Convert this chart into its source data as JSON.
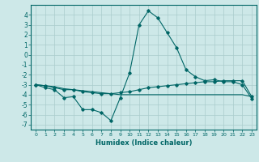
{
  "x": [
    0,
    1,
    2,
    3,
    4,
    5,
    6,
    7,
    8,
    9,
    10,
    11,
    12,
    13,
    14,
    15,
    16,
    17,
    18,
    19,
    20,
    21,
    22,
    23
  ],
  "line1": [
    -3.0,
    -3.3,
    -3.5,
    -4.3,
    -4.2,
    -5.5,
    -5.5,
    -5.8,
    -6.6,
    -4.3,
    -1.8,
    3.0,
    4.4,
    3.7,
    2.2,
    0.7,
    -1.5,
    -2.2,
    -2.6,
    -2.5,
    -2.7,
    -2.7,
    -3.0,
    -4.4
  ],
  "line2": [
    -3.0,
    -3.1,
    -3.3,
    -3.5,
    -3.5,
    -3.7,
    -3.8,
    -3.9,
    -3.9,
    -3.8,
    -3.7,
    -3.5,
    -3.3,
    -3.2,
    -3.1,
    -3.0,
    -2.9,
    -2.8,
    -2.7,
    -2.7,
    -2.6,
    -2.6,
    -2.6,
    -4.2
  ],
  "line3": [
    -3.0,
    -3.1,
    -3.2,
    -3.4,
    -3.5,
    -3.6,
    -3.7,
    -3.8,
    -3.9,
    -4.0,
    -4.0,
    -4.0,
    -4.0,
    -4.0,
    -4.0,
    -4.0,
    -4.0,
    -4.0,
    -4.0,
    -4.0,
    -4.0,
    -4.0,
    -4.0,
    -4.2
  ],
  "bg_color": "#cde8e8",
  "line_color": "#006666",
  "grid_color": "#aacccc",
  "xlabel": "Humidex (Indice chaleur)",
  "ylim": [
    -7.5,
    5.0
  ],
  "xlim": [
    -0.5,
    23.5
  ],
  "yticks": [
    -7,
    -6,
    -5,
    -4,
    -3,
    -2,
    -1,
    0,
    1,
    2,
    3,
    4
  ],
  "xticks": [
    0,
    1,
    2,
    3,
    4,
    5,
    6,
    7,
    8,
    9,
    10,
    11,
    12,
    13,
    14,
    15,
    16,
    17,
    18,
    19,
    20,
    21,
    22,
    23
  ]
}
